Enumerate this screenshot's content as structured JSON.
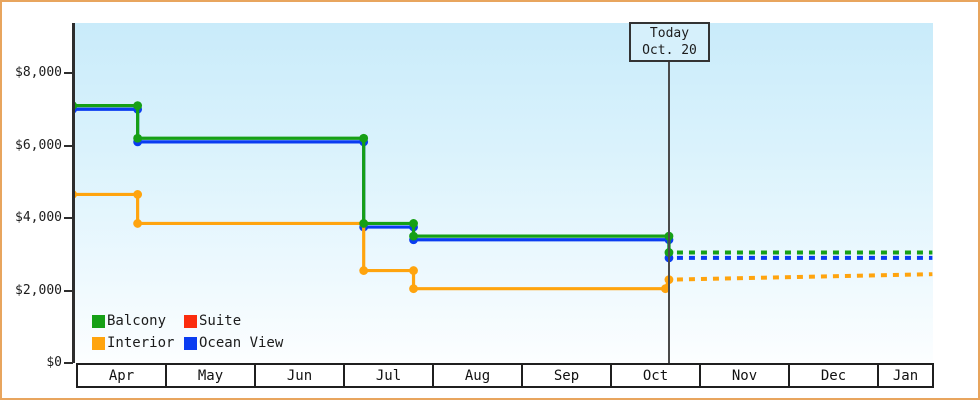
{
  "widget": {
    "border_color": "#e8a55e",
    "background": "#ffffff"
  },
  "today_box": {
    "line1": "Today",
    "line2": "Oct. 20"
  },
  "chart_data": {
    "type": "line",
    "title": "",
    "xlabel": "",
    "ylabel": "",
    "x_axis": {
      "categories": [
        "Apr",
        "May",
        "Jun",
        "Jul",
        "Aug",
        "Sep",
        "Oct",
        "Nov",
        "Dec",
        "Jan"
      ],
      "style": "month band with bordered cells, Jan truncated at right edge"
    },
    "y_axis": {
      "ticks": [
        {
          "label": "$0",
          "value": 0
        },
        {
          "label": "$2,000",
          "value": 2000
        },
        {
          "label": "$4,000",
          "value": 4000
        },
        {
          "label": "$6,000",
          "value": 6000
        },
        {
          "label": "$8,000",
          "value": 8000
        }
      ],
      "ylim": [
        0,
        9380
      ],
      "grid": false
    },
    "today_marker": {
      "label": "Today",
      "date": "Oct. 20",
      "x_months_from_apr1": 6.64
    },
    "plot_background": "light blue vertical gradient fading to white at bottom",
    "note": "x values are months from Apr 1 (0=Apr 1, 1=May 1, ...). Solid = price history, dashed = projection after Today (Oct. 20). Suite series has no visible data.",
    "series": [
      {
        "name": "Balcony",
        "color": "#16a016",
        "solid_points": [
          [
            -0.06,
            7100
          ],
          [
            0.67,
            7100
          ],
          [
            0.67,
            6200
          ],
          [
            3.21,
            6200
          ],
          [
            3.21,
            3850
          ],
          [
            3.77,
            3850
          ],
          [
            3.77,
            3500
          ],
          [
            6.64,
            3500
          ],
          [
            6.64,
            3050
          ]
        ],
        "dashed_points": [
          [
            6.64,
            3050
          ],
          [
            9.6,
            3050
          ]
        ]
      },
      {
        "name": "Suite",
        "color": "#fb2c0d",
        "solid_points": [],
        "dashed_points": []
      },
      {
        "name": "Interior",
        "color": "#ffa40e",
        "solid_points": [
          [
            -0.06,
            4650
          ],
          [
            0.67,
            4650
          ],
          [
            0.67,
            3850
          ],
          [
            3.21,
            3850
          ],
          [
            3.21,
            2550
          ],
          [
            3.77,
            2550
          ],
          [
            3.77,
            2050
          ],
          [
            6.6,
            2050
          ],
          [
            6.64,
            2300
          ]
        ],
        "dashed_points": [
          [
            6.64,
            2300
          ],
          [
            9.6,
            2450
          ]
        ]
      },
      {
        "name": "Ocean View",
        "color": "#0a3cf1",
        "solid_points": [
          [
            -0.06,
            7000
          ],
          [
            0.67,
            7000
          ],
          [
            0.67,
            6100
          ],
          [
            3.21,
            6100
          ],
          [
            3.21,
            3750
          ],
          [
            3.77,
            3750
          ],
          [
            3.77,
            3400
          ],
          [
            6.64,
            3400
          ],
          [
            6.64,
            2900
          ]
        ],
        "dashed_points": [
          [
            6.64,
            2900
          ],
          [
            9.6,
            2900
          ]
        ]
      }
    ],
    "legend": {
      "position": "bottom-left inside plot",
      "items": [
        {
          "label": "Balcony",
          "color": "#16a016"
        },
        {
          "label": "Suite",
          "color": "#fb2c0d"
        },
        {
          "label": "Interior",
          "color": "#ffa40e"
        },
        {
          "label": "Ocean View",
          "color": "#0a3cf1"
        }
      ]
    }
  }
}
